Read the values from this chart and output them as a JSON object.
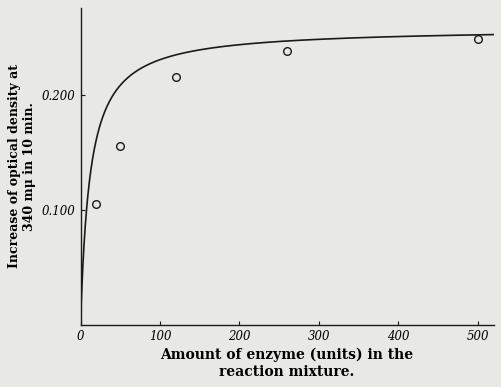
{
  "data_points_x": [
    20,
    50,
    120,
    260,
    500
  ],
  "data_points_y": [
    0.105,
    0.155,
    0.215,
    0.238,
    0.248
  ],
  "curve_Vmax": 0.258,
  "curve_Km": 12,
  "xlim": [
    0,
    520
  ],
  "ylim": [
    0,
    0.275
  ],
  "xticks": [
    0,
    100,
    200,
    300,
    400,
    500
  ],
  "xtick_labels": [
    "0",
    "100",
    "200",
    "300",
    "400",
    "500"
  ],
  "ytick_positions": [
    0.1,
    0.2
  ],
  "ytick_labels": [
    "0.100",
    "0.200"
  ],
  "xlabel_line1": "Amount of enzyme (units) in the",
  "xlabel_line2": "reaction mixture.",
  "ylabel": "Increase of optical density at\n340 mμ in 10 min.",
  "background_color": "#e8e8e4",
  "plot_bg_color": "#e8e8e4",
  "line_color": "#1a1a1a",
  "marker_facecolor": "#e8e8e4",
  "marker_edgecolor": "#1a1a1a",
  "marker_size": 5.5,
  "marker_linewidth": 1.0,
  "line_width": 1.2,
  "tick_fontsize": 8.5,
  "xlabel_fontsize": 10,
  "ylabel_fontsize": 9
}
